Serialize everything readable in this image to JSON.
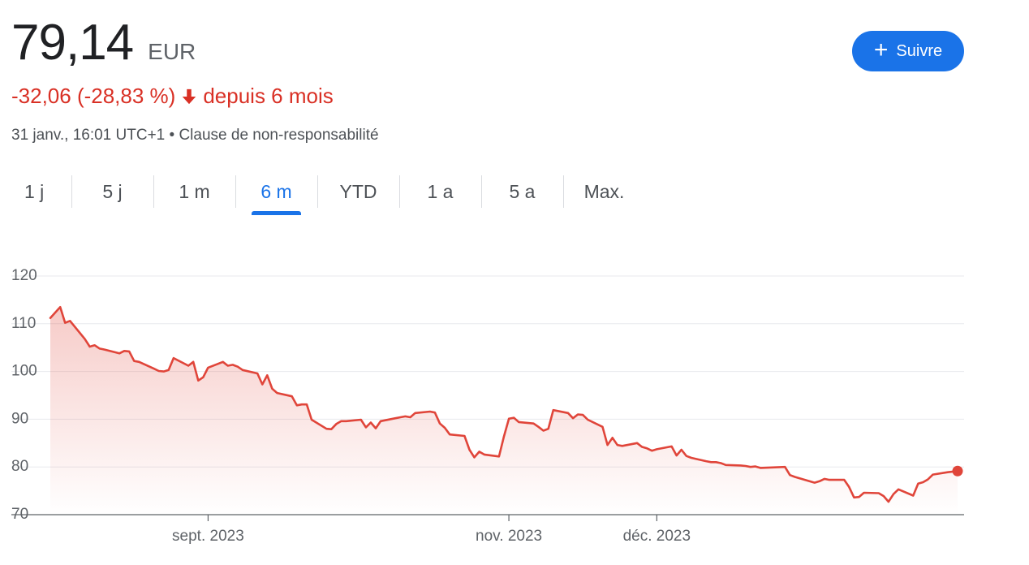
{
  "quote": {
    "price": "79,14",
    "currency": "EUR",
    "change": "-32,06 (-28,83 %)",
    "period": "depuis 6 mois",
    "timestamp": "31 janv., 16:01 UTC+1",
    "separator": "•",
    "disclaimer": "Clause de non-responsabilité",
    "down_color": "#d93025"
  },
  "follow_button": {
    "label": "Suivre",
    "icon": "plus-icon",
    "color": "#1a73e8"
  },
  "tabs": [
    {
      "label": "1 j",
      "active": false
    },
    {
      "label": "5 j",
      "active": false
    },
    {
      "label": "1 m",
      "active": false
    },
    {
      "label": "6 m",
      "active": true
    },
    {
      "label": "YTD",
      "active": false
    },
    {
      "label": "1 a",
      "active": false
    },
    {
      "label": "5 a",
      "active": false
    },
    {
      "label": "Max.",
      "active": false
    }
  ],
  "chart_data": {
    "type": "area",
    "x_range": [
      "2023-07-31",
      "2024-01-31"
    ],
    "ylim": [
      70,
      120
    ],
    "yticks": [
      120,
      110,
      100,
      90,
      80,
      70
    ],
    "xticks": [
      {
        "date": "2023-09-01",
        "label": "sept. 2023"
      },
      {
        "date": "2023-11-01",
        "label": "nov. 2023"
      },
      {
        "date": "2023-12-01",
        "label": "déc. 2023"
      }
    ],
    "grid": true,
    "line_color": "#e0453a",
    "series": [
      {
        "points": [
          [
            "2023-07-31",
            111.2
          ],
          [
            "2023-08-02",
            113.5
          ],
          [
            "2023-08-03",
            110.2
          ],
          [
            "2023-08-04",
            110.6
          ],
          [
            "2023-08-07",
            106.8
          ],
          [
            "2023-08-08",
            105.2
          ],
          [
            "2023-08-09",
            105.5
          ],
          [
            "2023-08-10",
            104.8
          ],
          [
            "2023-08-11",
            104.6
          ],
          [
            "2023-08-14",
            103.8
          ],
          [
            "2023-08-15",
            104.3
          ],
          [
            "2023-08-16",
            104.2
          ],
          [
            "2023-08-17",
            102.2
          ],
          [
            "2023-08-18",
            102.0
          ],
          [
            "2023-08-21",
            100.6
          ],
          [
            "2023-08-22",
            100.1
          ],
          [
            "2023-08-23",
            100.0
          ],
          [
            "2023-08-24",
            100.3
          ],
          [
            "2023-08-25",
            102.8
          ],
          [
            "2023-08-28",
            101.2
          ],
          [
            "2023-08-29",
            102.0
          ],
          [
            "2023-08-30",
            98.1
          ],
          [
            "2023-08-31",
            98.8
          ],
          [
            "2023-09-01",
            100.8
          ],
          [
            "2023-09-04",
            102.0
          ],
          [
            "2023-09-05",
            101.2
          ],
          [
            "2023-09-06",
            101.4
          ],
          [
            "2023-09-07",
            101.0
          ],
          [
            "2023-09-08",
            100.3
          ],
          [
            "2023-09-11",
            99.6
          ],
          [
            "2023-09-12",
            97.3
          ],
          [
            "2023-09-13",
            99.2
          ],
          [
            "2023-09-14",
            96.4
          ],
          [
            "2023-09-15",
            95.5
          ],
          [
            "2023-09-18",
            94.8
          ],
          [
            "2023-09-19",
            92.9
          ],
          [
            "2023-09-20",
            93.1
          ],
          [
            "2023-09-21",
            93.1
          ],
          [
            "2023-09-22",
            89.9
          ],
          [
            "2023-09-25",
            88.0
          ],
          [
            "2023-09-26",
            87.9
          ],
          [
            "2023-09-27",
            89.0
          ],
          [
            "2023-09-28",
            89.6
          ],
          [
            "2023-09-29",
            89.6
          ],
          [
            "2023-10-02",
            89.9
          ],
          [
            "2023-10-03",
            88.3
          ],
          [
            "2023-10-04",
            89.3
          ],
          [
            "2023-10-05",
            88.1
          ],
          [
            "2023-10-06",
            89.6
          ],
          [
            "2023-10-09",
            90.2
          ],
          [
            "2023-10-10",
            90.4
          ],
          [
            "2023-10-11",
            90.6
          ],
          [
            "2023-10-12",
            90.4
          ],
          [
            "2023-10-13",
            91.3
          ],
          [
            "2023-10-16",
            91.6
          ],
          [
            "2023-10-17",
            91.4
          ],
          [
            "2023-10-18",
            89.1
          ],
          [
            "2023-10-19",
            88.2
          ],
          [
            "2023-10-20",
            86.8
          ],
          [
            "2023-10-23",
            86.5
          ],
          [
            "2023-10-24",
            83.6
          ],
          [
            "2023-10-25",
            82.0
          ],
          [
            "2023-10-26",
            83.2
          ],
          [
            "2023-10-27",
            82.6
          ],
          [
            "2023-10-30",
            82.2
          ],
          [
            "2023-10-31",
            86.4
          ],
          [
            "2023-11-01",
            90.1
          ],
          [
            "2023-11-02",
            90.3
          ],
          [
            "2023-11-03",
            89.4
          ],
          [
            "2023-11-06",
            89.1
          ],
          [
            "2023-11-07",
            88.4
          ],
          [
            "2023-11-08",
            87.6
          ],
          [
            "2023-11-09",
            88.0
          ],
          [
            "2023-11-10",
            91.9
          ],
          [
            "2023-11-13",
            91.3
          ],
          [
            "2023-11-14",
            90.2
          ],
          [
            "2023-11-15",
            91.0
          ],
          [
            "2023-11-16",
            90.9
          ],
          [
            "2023-11-17",
            89.9
          ],
          [
            "2023-11-20",
            88.4
          ],
          [
            "2023-11-21",
            84.6
          ],
          [
            "2023-11-22",
            86.1
          ],
          [
            "2023-11-23",
            84.6
          ],
          [
            "2023-11-24",
            84.4
          ],
          [
            "2023-11-27",
            85.0
          ],
          [
            "2023-11-28",
            84.2
          ],
          [
            "2023-11-29",
            83.9
          ],
          [
            "2023-11-30",
            83.4
          ],
          [
            "2023-12-01",
            83.7
          ],
          [
            "2023-12-04",
            84.3
          ],
          [
            "2023-12-05",
            82.4
          ],
          [
            "2023-12-06",
            83.6
          ],
          [
            "2023-12-07",
            82.3
          ],
          [
            "2023-12-08",
            81.9
          ],
          [
            "2023-12-11",
            81.2
          ],
          [
            "2023-12-12",
            81.0
          ],
          [
            "2023-12-13",
            81.0
          ],
          [
            "2023-12-14",
            80.8
          ],
          [
            "2023-12-15",
            80.4
          ],
          [
            "2023-12-18",
            80.3
          ],
          [
            "2023-12-19",
            80.2
          ],
          [
            "2023-12-20",
            80.0
          ],
          [
            "2023-12-21",
            80.1
          ],
          [
            "2023-12-22",
            79.8
          ],
          [
            "2023-12-27",
            80.0
          ],
          [
            "2023-12-28",
            78.3
          ],
          [
            "2023-12-29",
            77.9
          ],
          [
            "2024-01-02",
            76.7
          ],
          [
            "2024-01-03",
            77.0
          ],
          [
            "2024-01-04",
            77.5
          ],
          [
            "2024-01-05",
            77.3
          ],
          [
            "2024-01-08",
            77.3
          ],
          [
            "2024-01-09",
            75.8
          ],
          [
            "2024-01-10",
            73.6
          ],
          [
            "2024-01-11",
            73.7
          ],
          [
            "2024-01-12",
            74.6
          ],
          [
            "2024-01-15",
            74.5
          ],
          [
            "2024-01-16",
            73.9
          ],
          [
            "2024-01-17",
            72.7
          ],
          [
            "2024-01-18",
            74.3
          ],
          [
            "2024-01-19",
            75.3
          ],
          [
            "2024-01-22",
            74.0
          ],
          [
            "2024-01-23",
            76.5
          ],
          [
            "2024-01-24",
            76.8
          ],
          [
            "2024-01-25",
            77.4
          ],
          [
            "2024-01-26",
            78.4
          ],
          [
            "2024-01-29",
            78.9
          ],
          [
            "2024-01-31",
            79.14
          ]
        ]
      }
    ]
  }
}
